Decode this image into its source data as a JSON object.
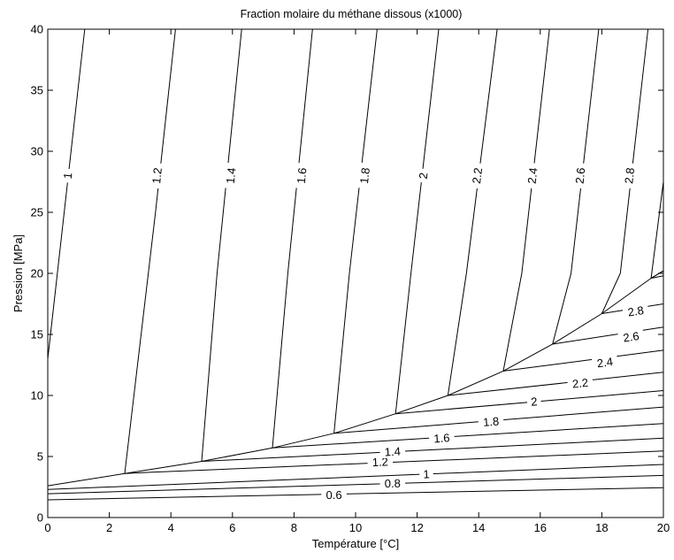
{
  "chart_data": {
    "type": "contour",
    "title": "Fraction molaire du méthane dissous (x1000)",
    "xlabel": "Température [°C]",
    "ylabel": "Pression [MPa]",
    "xlim": [
      0,
      20
    ],
    "ylim": [
      0,
      40
    ],
    "xticks": [
      "0",
      "2",
      "4",
      "6",
      "8",
      "10",
      "12",
      "14",
      "16",
      "18",
      "20"
    ],
    "yticks": [
      "0",
      "5",
      "10",
      "15",
      "20",
      "25",
      "30",
      "35",
      "40"
    ],
    "grid": false,
    "legend": "none",
    "hydrate_boundary": [
      [
        0,
        2.6
      ],
      [
        2.5,
        3.6
      ],
      [
        5,
        4.6
      ],
      [
        7.3,
        5.7
      ],
      [
        9.3,
        6.9
      ],
      [
        11.3,
        8.5
      ],
      [
        13,
        10
      ],
      [
        14.8,
        12
      ],
      [
        16.4,
        14.2
      ],
      [
        18,
        16.7
      ],
      [
        19.6,
        19.6
      ],
      [
        20,
        20.2
      ]
    ],
    "series": [
      {
        "name": "0.6",
        "points": [
          [
            0,
            1.45
          ],
          [
            20,
            2.45
          ]
        ],
        "label_at": [
          9.3,
          1.85
        ]
      },
      {
        "name": "0.8",
        "points": [
          [
            0,
            1.95
          ],
          [
            20,
            3.45
          ]
        ],
        "label_at": [
          11.2,
          2.8
        ]
      },
      {
        "name": "1",
        "points": [
          [
            0,
            2.3
          ],
          [
            20,
            4.35
          ]
        ],
        "label_at": [
          12.3,
          3.55
        ]
      },
      {
        "name": "1",
        "points": [
          [
            0,
            13
          ],
          [
            1.2,
            40
          ]
        ],
        "label_at": [
          0.65,
          28
        ]
      },
      {
        "name": "1.2",
        "points": [
          [
            2.5,
            3.6
          ],
          [
            3.3,
            3.7
          ],
          [
            20,
            5.45
          ]
        ],
        "label_at": [
          10.8,
          4.55
        ]
      },
      {
        "name": "1.2",
        "points": [
          [
            2.5,
            3.6
          ],
          [
            3.5,
            25
          ],
          [
            4.15,
            40
          ]
        ],
        "label_at": [
          3.55,
          28
        ]
      },
      {
        "name": "1.4",
        "points": [
          [
            5,
            4.6
          ],
          [
            20,
            6.5
          ]
        ],
        "label_at": [
          11.2,
          5.4
        ]
      },
      {
        "name": "1.4",
        "points": [
          [
            5,
            4.6
          ],
          [
            5.5,
            20
          ],
          [
            6.3,
            40
          ]
        ],
        "label_at": [
          5.95,
          28
        ]
      },
      {
        "name": "1.6",
        "points": [
          [
            7.3,
            5.7
          ],
          [
            20,
            7.7
          ]
        ],
        "label_at": [
          12.8,
          6.5
        ]
      },
      {
        "name": "1.6",
        "points": [
          [
            7.3,
            5.7
          ],
          [
            7.8,
            20
          ],
          [
            8.6,
            40
          ]
        ],
        "label_at": [
          8.25,
          28
        ]
      },
      {
        "name": "1.8",
        "points": [
          [
            9.3,
            6.9
          ],
          [
            20,
            9.05
          ]
        ],
        "label_at": [
          14.4,
          7.85
        ]
      },
      {
        "name": "1.8",
        "points": [
          [
            9.3,
            6.9
          ],
          [
            9.8,
            20
          ],
          [
            10.7,
            40
          ]
        ],
        "label_at": [
          10.3,
          28
        ]
      },
      {
        "name": "2",
        "points": [
          [
            11.3,
            8.5
          ],
          [
            20,
            10.4
          ]
        ],
        "label_at": [
          15.8,
          9.5
        ]
      },
      {
        "name": "2",
        "points": [
          [
            11.3,
            8.5
          ],
          [
            11.8,
            20
          ],
          [
            12.7,
            40
          ]
        ],
        "label_at": [
          12.2,
          28
        ]
      },
      {
        "name": "2.2",
        "points": [
          [
            13,
            10
          ],
          [
            20,
            11.9
          ]
        ],
        "label_at": [
          17.3,
          11
        ]
      },
      {
        "name": "2.2",
        "points": [
          [
            13,
            10
          ],
          [
            13.6,
            20
          ],
          [
            14.6,
            40
          ]
        ],
        "label_at": [
          13.95,
          28
        ]
      },
      {
        "name": "2.4",
        "points": [
          [
            14.8,
            12
          ],
          [
            20,
            13.7
          ]
        ],
        "label_at": [
          18.1,
          12.7
        ]
      },
      {
        "name": "2.4",
        "points": [
          [
            14.8,
            12
          ],
          [
            15.4,
            20
          ],
          [
            16.3,
            40
          ]
        ],
        "label_at": [
          15.75,
          28
        ]
      },
      {
        "name": "2.6",
        "points": [
          [
            16.4,
            14.2
          ],
          [
            20,
            15.6
          ]
        ],
        "label_at": [
          18.95,
          14.8
        ]
      },
      {
        "name": "2.6",
        "points": [
          [
            16.4,
            14.2
          ],
          [
            17,
            20
          ],
          [
            17.9,
            40
          ]
        ],
        "label_at": [
          17.3,
          28
        ]
      },
      {
        "name": "2.8",
        "points": [
          [
            18,
            16.7
          ],
          [
            20,
            17.5
          ]
        ],
        "label_at": [
          19.1,
          16.9
        ]
      },
      {
        "name": "2.8",
        "points": [
          [
            18,
            16.7
          ],
          [
            18.6,
            20
          ],
          [
            19.5,
            40
          ]
        ],
        "label_at": [
          18.9,
          28
        ]
      },
      {
        "name": "",
        "points": [
          [
            19.6,
            19.6
          ],
          [
            20,
            20.2
          ]
        ]
      },
      {
        "name": "",
        "points": [
          [
            19.6,
            19.6
          ],
          [
            20,
            19.8
          ]
        ]
      },
      {
        "name": "",
        "points": [
          [
            19.6,
            19.6
          ],
          [
            20,
            27.5
          ]
        ]
      }
    ]
  }
}
